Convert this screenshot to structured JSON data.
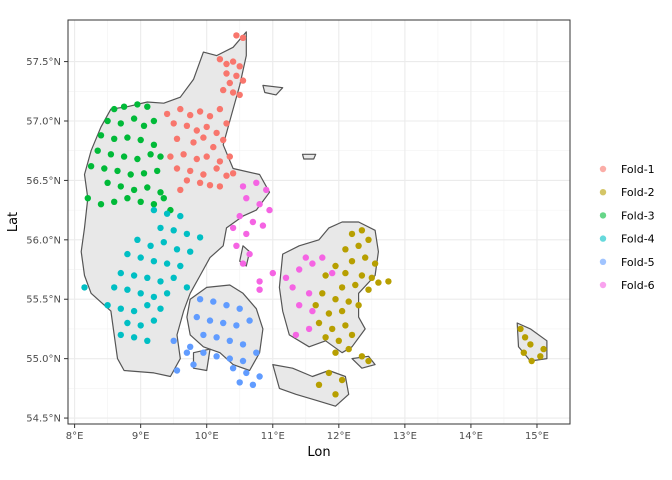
{
  "chart_data": {
    "type": "scatter",
    "xlabel": "Lon",
    "ylabel": "Lat",
    "xlim": [
      7.9,
      15.5
    ],
    "ylim": [
      54.45,
      57.85
    ],
    "x_ticks": [
      {
        "value": 8,
        "label": "8°E"
      },
      {
        "value": 9,
        "label": "9°E"
      },
      {
        "value": 10,
        "label": "10°E"
      },
      {
        "value": 11,
        "label": "11°E"
      },
      {
        "value": 12,
        "label": "12°E"
      },
      {
        "value": 13,
        "label": "13°E"
      },
      {
        "value": 14,
        "label": "14°E"
      },
      {
        "value": 15,
        "label": "15°E"
      }
    ],
    "y_ticks": [
      {
        "value": 54.5,
        "label": "54.5°N"
      },
      {
        "value": 55.0,
        "label": "55.0°N"
      },
      {
        "value": 55.5,
        "label": "55.5°N"
      },
      {
        "value": 56.0,
        "label": "56.0°N"
      },
      {
        "value": 56.5,
        "label": "56.5°N"
      },
      {
        "value": 57.0,
        "label": "57.0°N"
      },
      {
        "value": 57.5,
        "label": "57.5°N"
      }
    ],
    "grid": true,
    "legend_position": "right",
    "land_color": "#e8e8e8",
    "land_stroke": "#555555",
    "series": [
      {
        "name": "Fold-1",
        "color": "#F8766D",
        "points": [
          [
            10.45,
            57.72
          ],
          [
            10.55,
            57.7
          ],
          [
            10.2,
            57.52
          ],
          [
            10.3,
            57.48
          ],
          [
            10.4,
            57.5
          ],
          [
            10.5,
            57.46
          ],
          [
            10.3,
            57.4
          ],
          [
            10.45,
            57.38
          ],
          [
            10.35,
            57.32
          ],
          [
            10.55,
            57.34
          ],
          [
            10.25,
            57.26
          ],
          [
            10.4,
            57.24
          ],
          [
            10.5,
            57.22
          ],
          [
            9.4,
            57.06
          ],
          [
            9.6,
            57.1
          ],
          [
            9.75,
            57.05
          ],
          [
            9.9,
            57.08
          ],
          [
            10.05,
            57.04
          ],
          [
            10.2,
            57.1
          ],
          [
            9.5,
            56.98
          ],
          [
            9.7,
            56.96
          ],
          [
            9.85,
            56.92
          ],
          [
            10.0,
            56.95
          ],
          [
            10.15,
            56.9
          ],
          [
            10.3,
            56.98
          ],
          [
            9.55,
            56.85
          ],
          [
            9.8,
            56.82
          ],
          [
            9.95,
            56.86
          ],
          [
            10.1,
            56.78
          ],
          [
            10.25,
            56.84
          ],
          [
            9.45,
            56.7
          ],
          [
            9.65,
            56.72
          ],
          [
            9.85,
            56.68
          ],
          [
            10.0,
            56.7
          ],
          [
            10.2,
            56.66
          ],
          [
            10.35,
            56.7
          ],
          [
            9.55,
            56.6
          ],
          [
            9.75,
            56.58
          ],
          [
            9.95,
            56.55
          ],
          [
            10.15,
            56.6
          ],
          [
            10.3,
            56.54
          ],
          [
            9.9,
            56.48
          ],
          [
            10.05,
            56.46
          ],
          [
            10.2,
            56.45
          ],
          [
            9.7,
            56.5
          ],
          [
            10.4,
            56.56
          ],
          [
            9.6,
            56.42
          ]
        ]
      },
      {
        "name": "Fold-2",
        "color": "#B79F00",
        "points": [
          [
            12.2,
            56.05
          ],
          [
            12.35,
            56.08
          ],
          [
            12.45,
            56.0
          ],
          [
            12.3,
            55.95
          ],
          [
            12.1,
            55.92
          ],
          [
            12.4,
            55.85
          ],
          [
            12.55,
            55.8
          ],
          [
            12.2,
            55.82
          ],
          [
            11.95,
            55.78
          ],
          [
            12.1,
            55.72
          ],
          [
            12.35,
            55.7
          ],
          [
            12.5,
            55.68
          ],
          [
            11.8,
            55.7
          ],
          [
            12.05,
            55.6
          ],
          [
            12.25,
            55.62
          ],
          [
            12.45,
            55.58
          ],
          [
            12.6,
            55.64
          ],
          [
            12.75,
            55.65
          ],
          [
            11.75,
            55.55
          ],
          [
            11.95,
            55.5
          ],
          [
            12.15,
            55.48
          ],
          [
            12.3,
            55.45
          ],
          [
            11.65,
            55.45
          ],
          [
            11.85,
            55.38
          ],
          [
            12.05,
            55.4
          ],
          [
            11.7,
            55.3
          ],
          [
            11.9,
            55.25
          ],
          [
            12.1,
            55.28
          ],
          [
            11.8,
            55.18
          ],
          [
            12.0,
            55.15
          ],
          [
            12.2,
            55.2
          ],
          [
            11.95,
            55.05
          ],
          [
            12.15,
            55.08
          ],
          [
            12.35,
            55.02
          ],
          [
            12.45,
            54.98
          ],
          [
            11.85,
            54.88
          ],
          [
            12.05,
            54.82
          ],
          [
            11.7,
            54.78
          ],
          [
            11.95,
            54.7
          ],
          [
            14.75,
            55.25
          ],
          [
            14.82,
            55.18
          ],
          [
            14.9,
            55.12
          ],
          [
            14.8,
            55.05
          ],
          [
            14.92,
            54.98
          ],
          [
            15.05,
            55.02
          ],
          [
            15.1,
            55.08
          ]
        ]
      },
      {
        "name": "Fold-3",
        "color": "#00BA38",
        "points": [
          [
            8.6,
            57.1
          ],
          [
            8.75,
            57.12
          ],
          [
            8.95,
            57.14
          ],
          [
            9.1,
            57.12
          ],
          [
            8.5,
            57.0
          ],
          [
            8.7,
            56.98
          ],
          [
            8.9,
            57.02
          ],
          [
            9.05,
            56.96
          ],
          [
            9.2,
            57.0
          ],
          [
            8.4,
            56.88
          ],
          [
            8.6,
            56.85
          ],
          [
            8.8,
            56.86
          ],
          [
            9.0,
            56.84
          ],
          [
            9.2,
            56.8
          ],
          [
            8.35,
            56.75
          ],
          [
            8.55,
            56.72
          ],
          [
            8.75,
            56.7
          ],
          [
            8.95,
            56.68
          ],
          [
            9.15,
            56.72
          ],
          [
            9.3,
            56.7
          ],
          [
            8.25,
            56.62
          ],
          [
            8.45,
            56.6
          ],
          [
            8.65,
            56.58
          ],
          [
            8.85,
            56.55
          ],
          [
            9.05,
            56.56
          ],
          [
            9.25,
            56.58
          ],
          [
            8.5,
            56.48
          ],
          [
            8.7,
            56.45
          ],
          [
            8.9,
            56.42
          ],
          [
            9.1,
            56.44
          ],
          [
            9.3,
            56.4
          ],
          [
            8.8,
            56.35
          ],
          [
            9.0,
            56.32
          ],
          [
            9.2,
            56.3
          ],
          [
            9.35,
            56.35
          ],
          [
            8.2,
            56.35
          ],
          [
            8.4,
            56.3
          ],
          [
            8.6,
            56.32
          ],
          [
            9.45,
            56.25
          ]
        ]
      },
      {
        "name": "Fold-4",
        "color": "#00BFC4",
        "points": [
          [
            9.2,
            56.25
          ],
          [
            9.4,
            56.22
          ],
          [
            9.6,
            56.2
          ],
          [
            9.3,
            56.1
          ],
          [
            9.5,
            56.08
          ],
          [
            9.7,
            56.05
          ],
          [
            9.9,
            56.02
          ],
          [
            8.95,
            56.0
          ],
          [
            9.15,
            55.95
          ],
          [
            9.35,
            55.98
          ],
          [
            9.55,
            55.92
          ],
          [
            9.75,
            55.9
          ],
          [
            8.8,
            55.88
          ],
          [
            9.0,
            55.85
          ],
          [
            9.2,
            55.82
          ],
          [
            9.4,
            55.8
          ],
          [
            9.6,
            55.78
          ],
          [
            8.7,
            55.72
          ],
          [
            8.9,
            55.7
          ],
          [
            9.1,
            55.68
          ],
          [
            9.3,
            55.65
          ],
          [
            9.5,
            55.68
          ],
          [
            9.7,
            55.6
          ],
          [
            8.6,
            55.6
          ],
          [
            8.8,
            55.58
          ],
          [
            9.0,
            55.55
          ],
          [
            9.2,
            55.52
          ],
          [
            9.4,
            55.55
          ],
          [
            8.5,
            55.45
          ],
          [
            8.7,
            55.42
          ],
          [
            8.9,
            55.4
          ],
          [
            9.1,
            55.45
          ],
          [
            9.3,
            55.42
          ],
          [
            8.8,
            55.3
          ],
          [
            9.0,
            55.28
          ],
          [
            9.2,
            55.32
          ],
          [
            8.7,
            55.2
          ],
          [
            8.9,
            55.18
          ],
          [
            9.1,
            55.15
          ],
          [
            8.15,
            55.6
          ]
        ]
      },
      {
        "name": "Fold-5",
        "color": "#619CFF",
        "points": [
          [
            9.9,
            55.5
          ],
          [
            10.1,
            55.48
          ],
          [
            10.3,
            55.45
          ],
          [
            10.5,
            55.42
          ],
          [
            9.85,
            55.35
          ],
          [
            10.05,
            55.32
          ],
          [
            10.25,
            55.3
          ],
          [
            10.45,
            55.28
          ],
          [
            10.65,
            55.32
          ],
          [
            9.95,
            55.2
          ],
          [
            10.15,
            55.18
          ],
          [
            10.35,
            55.15
          ],
          [
            10.55,
            55.12
          ],
          [
            9.75,
            55.1
          ],
          [
            9.95,
            55.05
          ],
          [
            10.15,
            55.02
          ],
          [
            10.35,
            55.0
          ],
          [
            10.55,
            54.98
          ],
          [
            10.75,
            55.05
          ],
          [
            9.5,
            55.15
          ],
          [
            9.7,
            55.05
          ],
          [
            10.4,
            54.92
          ],
          [
            10.6,
            54.88
          ],
          [
            10.8,
            54.85
          ],
          [
            10.5,
            54.8
          ],
          [
            10.7,
            54.78
          ],
          [
            9.55,
            54.9
          ],
          [
            9.8,
            54.95
          ]
        ]
      },
      {
        "name": "Fold-6",
        "color": "#F564E3",
        "points": [
          [
            10.55,
            56.45
          ],
          [
            10.75,
            56.48
          ],
          [
            10.9,
            56.42
          ],
          [
            10.6,
            56.35
          ],
          [
            10.8,
            56.3
          ],
          [
            10.95,
            56.25
          ],
          [
            10.5,
            56.2
          ],
          [
            10.7,
            56.15
          ],
          [
            10.85,
            56.12
          ],
          [
            10.4,
            56.1
          ],
          [
            10.6,
            56.05
          ],
          [
            10.45,
            55.95
          ],
          [
            10.65,
            55.88
          ],
          [
            10.55,
            55.8
          ],
          [
            10.8,
            55.65
          ],
          [
            11.0,
            55.72
          ],
          [
            11.2,
            55.68
          ],
          [
            11.4,
            55.75
          ],
          [
            11.6,
            55.8
          ],
          [
            11.5,
            55.85
          ],
          [
            11.3,
            55.6
          ],
          [
            11.55,
            55.55
          ],
          [
            11.4,
            55.45
          ],
          [
            11.6,
            55.4
          ],
          [
            11.75,
            55.85
          ],
          [
            11.9,
            55.72
          ],
          [
            11.35,
            55.2
          ],
          [
            11.55,
            55.25
          ],
          [
            10.8,
            55.58
          ]
        ]
      }
    ]
  }
}
